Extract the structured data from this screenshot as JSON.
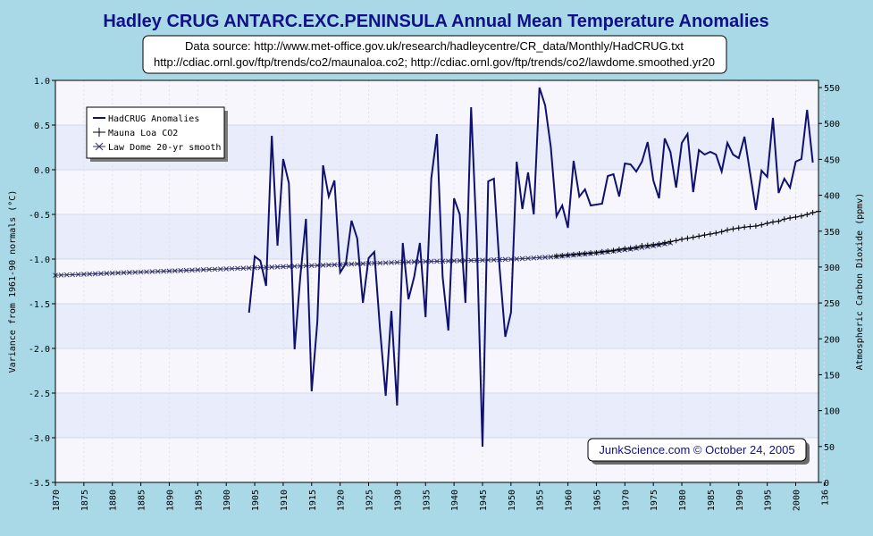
{
  "chart_data": {
    "type": "line",
    "title": "Hadley CRUG ANTARC.EXC.PENINSULA Annual Mean Temperature Anomalies",
    "source_line1": "Data source: http://www.met-office.gov.uk/research/hadleycentre/CR_data/Monthly/HadCRUG.txt",
    "source_line2": "http://cdiac.ornl.gov/ftp/trends/co2/maunaloa.co2; http://cdiac.ornl.gov/ftp/trends/co2/lawdome.smoothed.yr20",
    "credit": "JunkScience.com © October 24, 2005",
    "ylabel": "Variance from 1961-90 normals (°C)",
    "y2label": "Atmospheric Carbon Dioxide (ppmv)",
    "xlim": [
      1870,
      2004
    ],
    "ylim": [
      -3.5,
      1.0
    ],
    "y2lim": [
      0,
      560
    ],
    "x_ticks": [
      "1870",
      "1875",
      "1880",
      "1885",
      "1890",
      "1895",
      "1900",
      "1905",
      "1910",
      "1915",
      "1920",
      "1925",
      "1930",
      "1935",
      "1940",
      "1945",
      "1950",
      "1955",
      "1960",
      "1965",
      "1970",
      "1975",
      "1980",
      "1985",
      "1990",
      "1995",
      "2000",
      "136"
    ],
    "y_ticks": [
      "-3.5",
      "-3.0",
      "-2.5",
      "-2.0",
      "-1.5",
      "-1.0",
      "-0.5",
      "0.0",
      "0.5",
      "1.0"
    ],
    "y2_ticks": [
      "0",
      "50",
      "100",
      "150",
      "200",
      "250",
      "300",
      "350",
      "400",
      "450",
      "500",
      "550"
    ],
    "grid": true,
    "legend_position": "top-left",
    "series": [
      {
        "name": "HadCRUG Anomalies",
        "axis": "left",
        "color": "#10106e",
        "x": [
          1904,
          1905,
          1906,
          1907,
          1908,
          1909,
          1910,
          1911,
          1912,
          1913,
          1914,
          1915,
          1916,
          1917,
          1918,
          1919,
          1920,
          1921,
          1922,
          1923,
          1924,
          1925,
          1926,
          1927,
          1928,
          1929,
          1930,
          1931,
          1932,
          1933,
          1934,
          1935,
          1936,
          1937,
          1938,
          1939,
          1940,
          1941,
          1942,
          1943,
          1944,
          1945,
          1946,
          1947,
          1948,
          1949,
          1950,
          1951,
          1952,
          1953,
          1954,
          1955,
          1956,
          1957,
          1958,
          1959,
          1960,
          1961,
          1962,
          1963,
          1964,
          1965,
          1966,
          1967,
          1968,
          1969,
          1970,
          1971,
          1972,
          1973,
          1974,
          1975,
          1976,
          1977,
          1978,
          1979,
          1980,
          1981,
          1982,
          1983,
          1984,
          1985,
          1986,
          1987,
          1988,
          1989,
          1990,
          1991,
          1992,
          1993,
          1994,
          1995,
          1996,
          1997,
          1998,
          1999,
          2000,
          2001,
          2002,
          2003
        ],
        "values": [
          -1.6,
          -0.97,
          -1.02,
          -1.3,
          0.38,
          -0.85,
          0.12,
          -0.15,
          -2.01,
          -1.2,
          -0.55,
          -2.48,
          -1.7,
          0.05,
          -0.3,
          -0.12,
          -1.15,
          -1.05,
          -0.57,
          -0.77,
          -1.49,
          -0.99,
          -0.92,
          -1.78,
          -2.53,
          -1.58,
          -2.64,
          -0.82,
          -1.45,
          -1.2,
          -0.82,
          -1.65,
          -0.1,
          0.4,
          -1.2,
          -1.8,
          -0.32,
          -0.5,
          -1.49,
          0.7,
          -0.8,
          -3.1,
          -0.13,
          -0.1,
          -1.1,
          -1.87,
          -1.6,
          0.09,
          -0.44,
          -0.03,
          -0.5,
          0.92,
          0.72,
          0.25,
          -0.52,
          -0.4,
          -0.65,
          0.1,
          -0.3,
          -0.22,
          -0.4,
          -0.39,
          -0.38,
          -0.07,
          -0.05,
          -0.3,
          0.07,
          0.06,
          -0.02,
          0.09,
          0.31,
          -0.12,
          -0.32,
          0.35,
          0.2,
          -0.2,
          0.3,
          0.4,
          -0.25,
          0.22,
          0.17,
          0.2,
          0.17,
          -0.02,
          0.3,
          0.17,
          0.13,
          0.37,
          -0.04,
          -0.45,
          -0.01,
          -0.08,
          0.58,
          -0.26,
          -0.1,
          -0.2,
          0.09,
          0.12,
          0.67,
          0.08
        ]
      },
      {
        "name": "Mauna Loa CO2",
        "axis": "right",
        "color": "#000000",
        "x": [
          1958,
          1959,
          1960,
          1961,
          1962,
          1963,
          1964,
          1965,
          1966,
          1967,
          1968,
          1969,
          1970,
          1971,
          1972,
          1973,
          1974,
          1975,
          1976,
          1977,
          1978,
          1979,
          1980,
          1981,
          1982,
          1983,
          1984,
          1985,
          1986,
          1987,
          1988,
          1989,
          1990,
          1991,
          1992,
          1993,
          1994,
          1995,
          1996,
          1997,
          1998,
          1999,
          2000,
          2001,
          2002,
          2003,
          2004
        ],
        "values": [
          315.3,
          316.0,
          316.9,
          317.6,
          318.5,
          319.0,
          319.6,
          320.0,
          321.4,
          322.2,
          323.0,
          324.6,
          325.7,
          326.3,
          327.5,
          329.7,
          330.2,
          331.1,
          332.1,
          333.8,
          335.4,
          336.8,
          338.7,
          340.1,
          341.4,
          343.0,
          344.6,
          346.0,
          347.4,
          349.2,
          351.6,
          353.1,
          354.4,
          355.6,
          356.4,
          357.1,
          358.8,
          360.9,
          362.7,
          363.8,
          366.7,
          368.4,
          369.6,
          371.1,
          373.2,
          375.8,
          377.5
        ]
      },
      {
        "name": "Law Dome 20-yr smooth",
        "axis": "right",
        "color": "#333366",
        "x": [
          1870,
          1871,
          1872,
          1873,
          1874,
          1875,
          1876,
          1877,
          1878,
          1879,
          1880,
          1881,
          1882,
          1883,
          1884,
          1885,
          1886,
          1887,
          1888,
          1889,
          1890,
          1891,
          1892,
          1893,
          1894,
          1895,
          1896,
          1897,
          1898,
          1899,
          1900,
          1901,
          1902,
          1903,
          1904,
          1905,
          1906,
          1907,
          1908,
          1909,
          1910,
          1911,
          1912,
          1913,
          1914,
          1915,
          1916,
          1917,
          1918,
          1919,
          1920,
          1921,
          1922,
          1923,
          1924,
          1925,
          1926,
          1927,
          1928,
          1929,
          1930,
          1931,
          1932,
          1933,
          1934,
          1935,
          1936,
          1937,
          1938,
          1939,
          1940,
          1941,
          1942,
          1943,
          1944,
          1945,
          1946,
          1947,
          1948,
          1949,
          1950,
          1951,
          1952,
          1953,
          1954,
          1955,
          1956,
          1957,
          1958,
          1959,
          1960,
          1961,
          1962,
          1963,
          1964,
          1965,
          1966,
          1967,
          1968,
          1969,
          1970,
          1971,
          1972,
          1973,
          1974,
          1975,
          1976,
          1977,
          1978
        ],
        "values": [
          288.5,
          288.8,
          289.1,
          289.4,
          289.7,
          290.0,
          290.3,
          290.6,
          290.9,
          291.2,
          291.5,
          291.8,
          292.1,
          292.4,
          292.7,
          293.0,
          293.3,
          293.6,
          293.9,
          294.2,
          294.5,
          294.8,
          295.1,
          295.4,
          295.7,
          296.0,
          296.3,
          296.6,
          296.9,
          297.2,
          297.5,
          297.8,
          298.1,
          298.4,
          298.7,
          299.0,
          299.3,
          299.6,
          299.9,
          300.2,
          300.5,
          300.8,
          301.1,
          301.4,
          301.7,
          302.0,
          302.3,
          302.6,
          302.9,
          303.2,
          303.5,
          303.8,
          304.1,
          304.4,
          304.7,
          305.0,
          305.3,
          305.6,
          305.9,
          306.2,
          306.5,
          306.8,
          307.0,
          307.2,
          307.4,
          307.6,
          307.8,
          308.0,
          308.2,
          308.4,
          308.6,
          308.8,
          309.0,
          309.2,
          309.4,
          309.6,
          309.8,
          310.0,
          310.3,
          310.6,
          310.9,
          311.3,
          311.7,
          312.1,
          312.6,
          313.1,
          313.6,
          314.1,
          314.7,
          315.3,
          316.0,
          316.7,
          317.4,
          318.1,
          318.8,
          319.6,
          320.4,
          321.2,
          322.1,
          323.0,
          324.0,
          325.0,
          326.1,
          327.2,
          328.4,
          329.6,
          330.9,
          332.2,
          333.6
        ]
      }
    ]
  }
}
